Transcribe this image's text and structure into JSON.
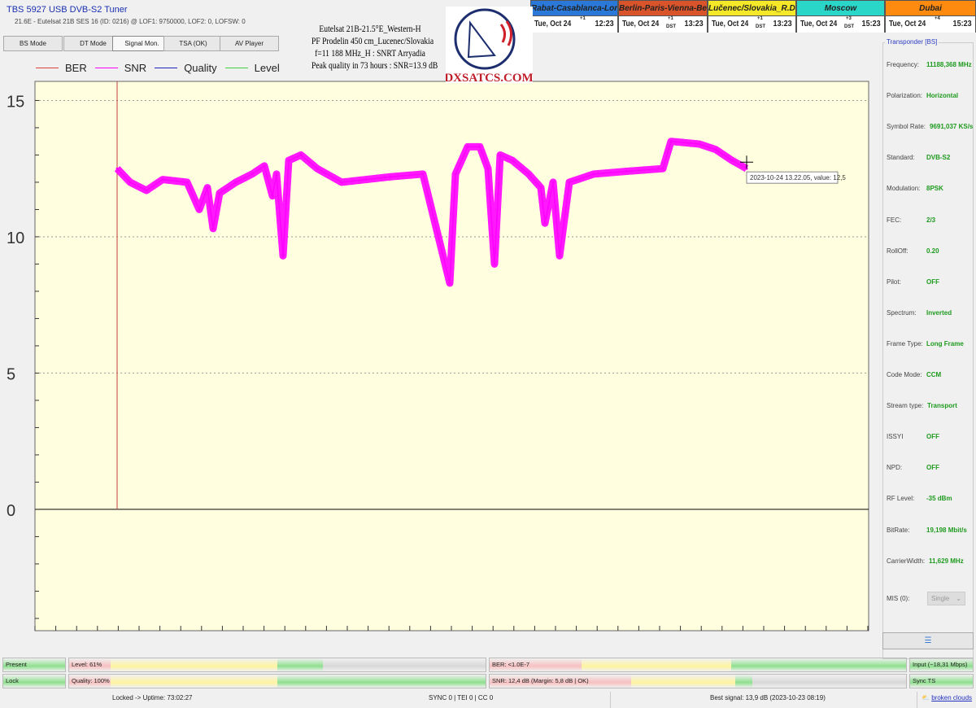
{
  "app": {
    "title": "TBS 5927 USB DVB-S2 Tuner",
    "subtitle": "21.6E - Eutelsat 21B  SES 16 (ID: 0216) @ LOF1: 9750000, LOF2: 0, LOFSW: 0"
  },
  "tabs": [
    {
      "label": "BS Mode"
    },
    {
      "label": "DT Mode"
    },
    {
      "label": "Signal Mon.",
      "active": true
    },
    {
      "label": "TSA (OK)"
    },
    {
      "label": "AV Player"
    }
  ],
  "overlay": {
    "lines": [
      "Eutelsat 21B-21.5°E_Western-H",
      "PF Prodelin 450 cm_Lucenec/Slovakia",
      "f=11 188 MHz_H : SNRT Arryadia",
      "Peak quality in 73 hours : SNR=13.9 dB"
    ],
    "logo_text": "DXSATCS.COM"
  },
  "clocks": [
    {
      "city": "Rabat-Casablanca-London",
      "date": "Tue, Oct 24",
      "offset": "+1",
      "dst": "",
      "time": "12:23",
      "color": "#2a78d8"
    },
    {
      "city": "Berlin-Paris-Vienna-Belgrade",
      "date": "Tue, Oct 24",
      "offset": "+1",
      "dst": "DST",
      "time": "13:23",
      "color": "#d9532b"
    },
    {
      "city": "Lučenec/Slovakia_R.Dávid",
      "date": "Tue, Oct 24",
      "offset": "+1",
      "dst": "DST",
      "time": "13:23",
      "color": "#f5e829"
    },
    {
      "city": "Moscow",
      "date": "Tue, Oct 24",
      "offset": "+3",
      "dst": "DST",
      "time": "15:23",
      "color": "#2ad6c8"
    },
    {
      "city": "Dubai",
      "date": "Tue, Oct 24",
      "offset": "+4",
      "dst": "",
      "time": "15:23",
      "color": "#ff8a10"
    }
  ],
  "chart_data": {
    "type": "line",
    "legend": [
      {
        "name": "BER",
        "color": "#e04040"
      },
      {
        "name": "SNR",
        "color": "#ff00ff"
      },
      {
        "name": "Quality",
        "color": "#2020c0"
      },
      {
        "name": "Level",
        "color": "#40d040"
      }
    ],
    "legend_placement": "top-left",
    "ylim": [
      -4.45,
      15.7
    ],
    "yticks": [
      "15",
      "10",
      "5",
      "0"
    ],
    "grid": true,
    "background": "#ffffe0",
    "series": [
      {
        "name": "SNR",
        "color": "#ff00ff",
        "x": [
          0,
          16,
          36,
          56,
          86,
          101,
          111,
          118,
          126,
          146,
          166,
          181,
          191,
          196,
          204,
          211,
          226,
          246,
          276,
          306,
          336,
          376,
          409,
          416,
          431,
          446,
          456,
          464,
          471,
          486,
          506,
          521,
          526,
          536,
          544,
          556,
          586,
          626,
          671,
          681,
          716,
          736,
          756,
          774
        ],
        "values": [
          12.5,
          12.0,
          11.7,
          12.1,
          12.0,
          11.0,
          11.8,
          10.3,
          11.6,
          12.0,
          12.3,
          12.6,
          11.5,
          12.3,
          9.3,
          12.8,
          13.0,
          12.5,
          12.0,
          12.1,
          12.2,
          12.3,
          8.3,
          12.3,
          13.3,
          13.3,
          12.5,
          9.0,
          13.0,
          12.8,
          12.3,
          11.8,
          10.5,
          12.0,
          9.3,
          12.0,
          12.3,
          12.4,
          12.5,
          13.5,
          13.4,
          13.2,
          12.8,
          12.5
        ]
      }
    ],
    "tooltip": "2023-10-24 13.22.05, value: 12,5"
  },
  "transponder": {
    "header": "Transponder [BS]",
    "rows": [
      {
        "label": "Frequency:",
        "value": "11188,368 MHz"
      },
      {
        "label": "Polarization:",
        "value": "Horizontal"
      },
      {
        "label": "Symbol Rate:",
        "value": "9691,037 KS/s"
      },
      {
        "label": "Standard:",
        "value": "DVB-S2"
      },
      {
        "label": "Modulation:",
        "value": "8PSK"
      },
      {
        "label": "FEC:",
        "value": "2/3"
      },
      {
        "label": "RollOff:",
        "value": "0.20"
      },
      {
        "label": "Pilot:",
        "value": "OFF"
      },
      {
        "label": "Spectrum:",
        "value": "Inverted"
      },
      {
        "label": "Frame Type:",
        "value": "Long Frame"
      },
      {
        "label": "Code Mode:",
        "value": "CCM"
      },
      {
        "label": "Stream type:",
        "value": "Transport"
      },
      {
        "label": "ISSYI",
        "value": "OFF"
      },
      {
        "label": "NPD:",
        "value": "OFF"
      },
      {
        "label": "RF Level:",
        "value": "-35 dBm"
      },
      {
        "label": "BitRate:",
        "value": "19,198 Mbit/s"
      },
      {
        "label": "CarrierWidth:",
        "value": "11,629 MHz"
      }
    ],
    "mis_label": "MIS (0):",
    "mis_value": "Single"
  },
  "bars": {
    "present": "Present",
    "lock": "Lock",
    "level": "Level: 61%",
    "level_pct": 61,
    "quality": "Quality: 100%",
    "quality_pct": 100,
    "ber": "BER: <1.0E-7",
    "snr": "SNR: 12,4 dB (Margin: 5,8 dB | OK)",
    "input": "Input (~18,31 Mbps)",
    "sync": "Sync TS"
  },
  "statusbar": {
    "uptime": "Locked -> Uptime: 73:02:27",
    "counters": "SYNC 0 | TEI 0 | CC 0",
    "best": "Best signal: 13,9 dB (2023-10-23 08:19)",
    "weather": "broken clouds"
  }
}
